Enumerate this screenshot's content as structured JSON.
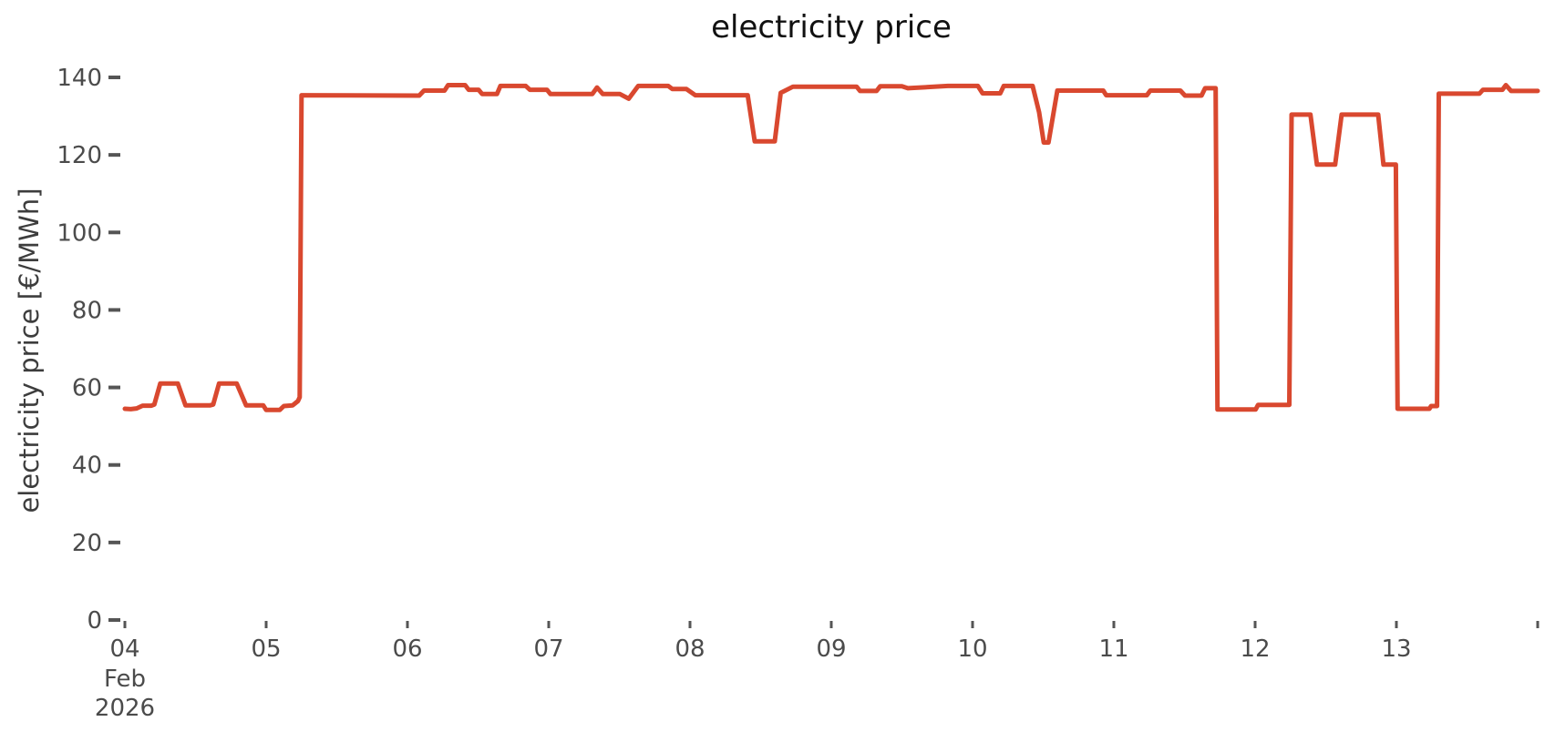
{
  "chart_data": {
    "type": "line",
    "title": "electricity price",
    "ylabel": "electricity price [€/MWh]",
    "xlabel": "",
    "legend": null,
    "grid": false,
    "line_color": "#d9482f",
    "axis_text_color": "#4b4b4b",
    "x_unit": "hours since first x tick (Feb 04)",
    "x_range": [
      0,
      240
    ],
    "y_range": [
      0,
      140
    ],
    "y_ticks": [
      0,
      20,
      40,
      60,
      80,
      100,
      120,
      140
    ],
    "x_ticks": [
      {
        "t": 0,
        "label": "04"
      },
      {
        "t": 24,
        "label": "05"
      },
      {
        "t": 48,
        "label": "06"
      },
      {
        "t": 72,
        "label": "07"
      },
      {
        "t": 96,
        "label": "08"
      },
      {
        "t": 120,
        "label": "09"
      },
      {
        "t": 144,
        "label": "10"
      },
      {
        "t": 168,
        "label": "11"
      },
      {
        "t": 192,
        "label": "12"
      },
      {
        "t": 216,
        "label": "13"
      },
      {
        "t": 240,
        "label": ""
      }
    ],
    "x_sublabels": [
      "Feb",
      "2026"
    ],
    "series": [
      {
        "name": "electricity price",
        "points": [
          [
            0,
            54.5
          ],
          [
            1,
            54.4
          ],
          [
            2,
            54.6
          ],
          [
            3,
            55.3
          ],
          [
            4.5,
            55.3
          ],
          [
            5,
            55.6
          ],
          [
            6,
            61
          ],
          [
            9,
            61
          ],
          [
            10.3,
            55.4
          ],
          [
            14.5,
            55.4
          ],
          [
            15,
            55.6
          ],
          [
            16,
            61
          ],
          [
            19,
            61
          ],
          [
            20.6,
            55.4
          ],
          [
            23.5,
            55.4
          ],
          [
            24,
            54.2
          ],
          [
            26.3,
            54.2
          ],
          [
            27,
            55.2
          ],
          [
            28.5,
            55.4
          ],
          [
            29.4,
            56.5
          ],
          [
            29.7,
            57.5
          ],
          [
            30,
            135.4
          ],
          [
            50,
            135.3
          ],
          [
            50.8,
            136.6
          ],
          [
            54.3,
            136.6
          ],
          [
            54.9,
            138
          ],
          [
            57.8,
            138
          ],
          [
            58.4,
            136.8
          ],
          [
            60.1,
            136.8
          ],
          [
            60.7,
            135.7
          ],
          [
            63.2,
            135.7
          ],
          [
            63.8,
            137.8
          ],
          [
            68.1,
            137.8
          ],
          [
            68.8,
            136.8
          ],
          [
            71.7,
            136.8
          ],
          [
            72.3,
            135.7
          ],
          [
            79.4,
            135.7
          ],
          [
            80.2,
            137.4
          ],
          [
            81.2,
            135.7
          ],
          [
            84.1,
            135.7
          ],
          [
            85.6,
            134.5
          ],
          [
            87.2,
            137.8
          ],
          [
            92.3,
            137.8
          ],
          [
            93,
            137
          ],
          [
            95.4,
            137
          ],
          [
            96.9,
            135.4
          ],
          [
            105.8,
            135.4
          ],
          [
            107,
            123.5
          ],
          [
            110.4,
            123.5
          ],
          [
            111.4,
            136
          ],
          [
            113.5,
            137.6
          ],
          [
            124.3,
            137.6
          ],
          [
            124.9,
            136.5
          ],
          [
            127.7,
            136.5
          ],
          [
            128.3,
            137.7
          ],
          [
            132,
            137.7
          ],
          [
            133,
            137.2
          ],
          [
            139.8,
            137.8
          ],
          [
            144.9,
            137.8
          ],
          [
            145.7,
            135.9
          ],
          [
            148.7,
            135.9
          ],
          [
            149.3,
            137.8
          ],
          [
            154.2,
            137.8
          ],
          [
            155.3,
            131
          ],
          [
            156.1,
            123.2
          ],
          [
            156.9,
            123.2
          ],
          [
            158.4,
            136.6
          ],
          [
            166.2,
            136.6
          ],
          [
            166.7,
            135.4
          ],
          [
            173.6,
            135.4
          ],
          [
            174.2,
            136.6
          ],
          [
            179.3,
            136.6
          ],
          [
            180.1,
            135.3
          ],
          [
            182.9,
            135.3
          ],
          [
            183.5,
            137.2
          ],
          [
            185.3,
            137.2
          ],
          [
            185.6,
            54.3
          ],
          [
            192.1,
            54.3
          ],
          [
            192.5,
            55.5
          ],
          [
            197.8,
            55.5
          ],
          [
            198.2,
            130.4
          ],
          [
            201.4,
            130.4
          ],
          [
            202.5,
            117.5
          ],
          [
            205.6,
            117.5
          ],
          [
            206.7,
            130.4
          ],
          [
            212.9,
            130.4
          ],
          [
            213.8,
            117.5
          ],
          [
            215.9,
            117.5
          ],
          [
            216.2,
            54.5
          ],
          [
            221.6,
            54.5
          ],
          [
            221.9,
            55.2
          ],
          [
            222.9,
            55.2
          ],
          [
            223.2,
            135.8
          ],
          [
            230.1,
            135.8
          ],
          [
            230.7,
            136.8
          ],
          [
            234,
            136.8
          ],
          [
            234.6,
            138
          ],
          [
            235.5,
            136.5
          ],
          [
            240,
            136.5
          ]
        ]
      }
    ]
  }
}
